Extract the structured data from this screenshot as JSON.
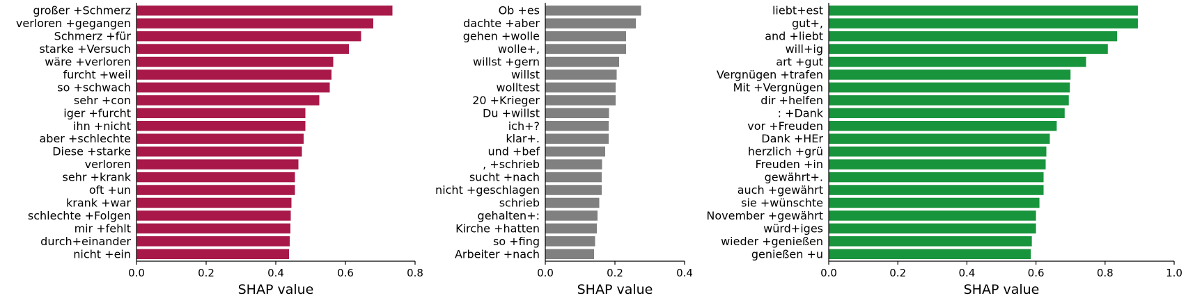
{
  "chart_data": [
    {
      "type": "bar",
      "orientation": "horizontal",
      "color": "#a8194a",
      "categories": [
        "großer +Schmerz",
        "verloren +gegangen",
        "Schmerz +für",
        "starke +Versuch",
        "wäre +verloren",
        "furcht +weil",
        "so +schwach",
        "sehr +con",
        "iger +furcht",
        "ihn +nicht",
        "aber +schlechte",
        "Diese +starke",
        "verloren",
        "sehr +krank",
        "oft +un",
        "krank +war",
        "schlechte +Folgen",
        "mir +fehlt",
        "durch+einander",
        "nicht +ein"
      ],
      "values": [
        0.735,
        0.68,
        0.645,
        0.61,
        0.565,
        0.56,
        0.555,
        0.525,
        0.485,
        0.485,
        0.48,
        0.475,
        0.465,
        0.455,
        0.455,
        0.445,
        0.443,
        0.442,
        0.44,
        0.438
      ],
      "xlabel": "SHAP value",
      "xlim": [
        0,
        0.8
      ],
      "xticks": [
        0.0,
        0.2,
        0.4,
        0.6,
        0.8
      ],
      "xtick_labels": [
        "0.0",
        "0.2",
        "0.4",
        "0.6",
        "0.8"
      ]
    },
    {
      "type": "bar",
      "orientation": "horizontal",
      "color": "#808080",
      "categories": [
        "Ob +es",
        "dachte +aber",
        "gehen +wolle",
        "wolle+,",
        "willst +gern",
        "willst",
        "wolltest",
        "20 +Krieger",
        "Du +willst",
        "ich+?",
        "klar+.",
        "und +bef",
        ", +schrieb",
        "sucht +nach",
        "nicht +geschlagen",
        "schrieb",
        "gehalten+:",
        "Kirche +hatten",
        "so +fing",
        "Arbeiter +nach"
      ],
      "values": [
        0.275,
        0.26,
        0.232,
        0.232,
        0.212,
        0.205,
        0.202,
        0.202,
        0.183,
        0.182,
        0.182,
        0.172,
        0.163,
        0.162,
        0.162,
        0.155,
        0.15,
        0.148,
        0.143,
        0.14
      ],
      "xlabel": "SHAP value",
      "xlim": [
        0,
        0.4
      ],
      "xticks": [
        0.0,
        0.2,
        0.4
      ],
      "xtick_labels": [
        "0.0",
        "0.2",
        "0.4"
      ]
    },
    {
      "type": "bar",
      "orientation": "horizontal",
      "color": "#18943c",
      "categories": [
        "liebt+est",
        "gut+,",
        "and +liebt",
        "will+ig",
        "art +gut",
        "Vergnügen +trafen",
        "Mit +Vergnügen",
        "dir +helfen",
        ": +Dank",
        "vor +Freuden",
        "Dank +HEr",
        "herzlich +grü",
        "Freuden +in",
        "gewährt+.",
        "auch +gewährt",
        "sie +wünschte",
        "November +gewährt",
        "würd+iges",
        "wieder +genießen",
        "genießen +u"
      ],
      "values": [
        0.895,
        0.895,
        0.835,
        0.808,
        0.745,
        0.7,
        0.698,
        0.695,
        0.683,
        0.66,
        0.64,
        0.63,
        0.628,
        0.622,
        0.622,
        0.61,
        0.6,
        0.6,
        0.588,
        0.585
      ],
      "xlabel": "SHAP value",
      "xlim": [
        0,
        1.0
      ],
      "xticks": [
        0.0,
        0.2,
        0.4,
        0.6,
        0.8,
        1.0
      ],
      "xtick_labels": [
        "0.0",
        "0.2",
        "0.4",
        "0.6",
        "0.8",
        "1.0"
      ]
    }
  ]
}
